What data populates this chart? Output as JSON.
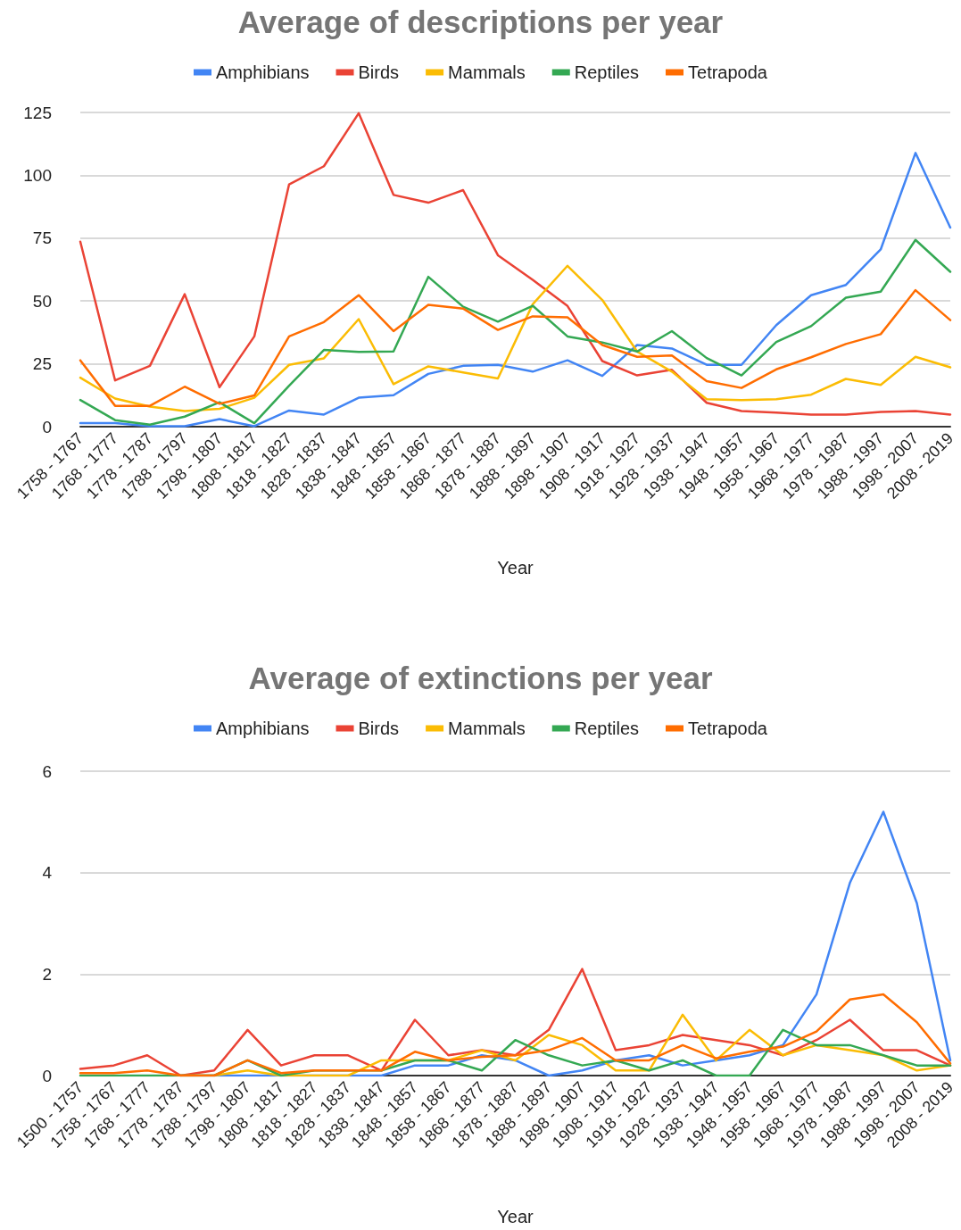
{
  "chart_data": [
    {
      "type": "line",
      "title": "Average of descriptions per year",
      "xlabel": "Year",
      "categories": [
        "1758 - 1767",
        "1768 - 1777",
        "1778 - 1787",
        "1788 - 1797",
        "1798 - 1807",
        "1808 - 1817",
        "1818 - 1827",
        "1828 - 1837",
        "1838 - 1847",
        "1848 - 1857",
        "1858 - 1867",
        "1868 - 1877",
        "1878 - 1887",
        "1888 - 1897",
        "1898 - 1907",
        "1908 - 1917",
        "1918 - 1927",
        "1928 - 1937",
        "1938 - 1947",
        "1948 - 1957",
        "1958 - 1967",
        "1968 - 1977",
        "1978 - 1987",
        "1988 - 1997",
        "1998 - 2007",
        "2008 - 2019"
      ],
      "series": [
        {
          "name": "Amphibians",
          "color": "#4285f4",
          "values": [
            1.4,
            1.4,
            0.2,
            0.2,
            3,
            0.2,
            6.4,
            4.8,
            11.5,
            12.5,
            21,
            24.2,
            24.6,
            21.9,
            26.4,
            20.2,
            32.5,
            31.1,
            24.6,
            24.6,
            40.4,
            52.3,
            56.4,
            70.5,
            108.9,
            79.2
          ]
        },
        {
          "name": "Birds",
          "color": "#ea4335",
          "values": [
            73.6,
            18.4,
            24.2,
            52.7,
            15.7,
            35.9,
            96.4,
            103.6,
            124.7,
            92.2,
            89.1,
            94.1,
            68.2,
            58.4,
            48,
            26.1,
            20.4,
            22.6,
            9.5,
            6.2,
            5.6,
            4.8,
            4.8,
            5.9,
            6.2,
            4.8
          ]
        },
        {
          "name": "Mammals",
          "color": "#fbbc04",
          "values": [
            19.5,
            11.2,
            8,
            6.2,
            7.1,
            11.5,
            24.6,
            27.2,
            42.8,
            16.9,
            24,
            21.6,
            19.2,
            48.7,
            64,
            50.4,
            29.9,
            21.9,
            10.9,
            10.6,
            10.9,
            12.7,
            19,
            16.6,
            27.8,
            23.6
          ]
        },
        {
          "name": "Reptiles",
          "color": "#34a853",
          "values": [
            10.6,
            2.6,
            0.8,
            4,
            9.7,
            1.4,
            16.3,
            30.5,
            29.7,
            29.9,
            59.6,
            47.7,
            41.8,
            48.1,
            35.9,
            33.5,
            29.9,
            38,
            27.3,
            20.4,
            33.7,
            40,
            51.3,
            53.7,
            74.3,
            61.6
          ]
        },
        {
          "name": "Tetrapoda",
          "color": "#ff6d01",
          "values": [
            26.4,
            8.3,
            8.3,
            15.9,
            9.1,
            12.4,
            35.9,
            41.6,
            52.3,
            38,
            48.5,
            47,
            38.5,
            43.9,
            43.5,
            32.5,
            27.8,
            28.3,
            18.1,
            15.4,
            22.8,
            27.6,
            32.9,
            36.8,
            54.3,
            42.4
          ]
        }
      ],
      "ylim": [
        0,
        125
      ],
      "yticks": [
        0,
        25,
        50,
        75,
        100,
        125
      ],
      "grid": "y",
      "legend": "top",
      "marker": "none",
      "line_style": "solid"
    },
    {
      "type": "line",
      "title": "Average of extinctions per year",
      "xlabel": "Year",
      "categories": [
        "1500 - 1757",
        "1758 - 1767",
        "1768 - 1777",
        "1778 - 1787",
        "1788 - 1797",
        "1798 - 1807",
        "1808 - 1817",
        "1818 - 1827",
        "1828 - 1837",
        "1838 - 1847",
        "1848 - 1857",
        "1858 - 1867",
        "1868 - 1877",
        "1878 - 1887",
        "1888 - 1897",
        "1898 - 1907",
        "1908 - 1917",
        "1918 - 1927",
        "1928 - 1937",
        "1938 - 1947",
        "1948 - 1957",
        "1958 - 1967",
        "1968 - 1977",
        "1978 - 1987",
        "1988 - 1997",
        "1998 - 2007",
        "2008 - 2019"
      ],
      "series": [
        {
          "name": "Amphibians",
          "color": "#4285f4",
          "values": [
            null,
            null,
            null,
            0,
            0,
            0,
            0,
            0,
            0,
            0,
            0.2,
            0.2,
            0.4,
            0.3,
            0,
            0.1,
            0.3,
            0.4,
            0.2,
            0.3,
            0.4,
            0.6,
            1.6,
            3.8,
            5.2,
            3.4,
            0.3
          ]
        },
        {
          "name": "Birds",
          "color": "#ea4335",
          "values": [
            0.13,
            0.2,
            0.4,
            0,
            0.1,
            0.9,
            0.2,
            0.4,
            0.4,
            0.1,
            1.1,
            0.4,
            0.5,
            0.4,
            0.9,
            2.1,
            0.5,
            0.6,
            0.8,
            0.7,
            0.6,
            0.4,
            0.7,
            1.1,
            0.5,
            0.5,
            0.2
          ]
        },
        {
          "name": "Mammals",
          "color": "#fbbc04",
          "values": [
            null,
            null,
            null,
            0,
            0,
            0.1,
            0,
            0,
            0,
            0.3,
            0.3,
            0.3,
            0.5,
            0.3,
            0.8,
            0.6,
            0.1,
            0.1,
            1.2,
            0.3,
            0.9,
            0.4,
            0.6,
            0.5,
            0.4,
            0.1,
            0.2
          ]
        },
        {
          "name": "Reptiles",
          "color": "#34a853",
          "values": [
            0,
            0,
            0,
            0,
            0,
            0.3,
            0,
            0.1,
            0.1,
            0.1,
            0.3,
            0.3,
            0.1,
            0.7,
            0.4,
            0.2,
            0.3,
            0.1,
            0.3,
            0,
            0,
            0.9,
            0.6,
            0.6,
            0.4,
            0.2,
            0.2
          ]
        },
        {
          "name": "Tetrapoda",
          "color": "#ff6d01",
          "values": [
            0.05,
            0.05,
            0.1,
            0,
            0,
            0.3,
            0.05,
            0.1,
            0.1,
            0.1,
            0.47,
            0.3,
            0.37,
            0.4,
            0.5,
            0.74,
            0.3,
            0.3,
            0.6,
            0.34,
            0.47,
            0.57,
            0.87,
            1.5,
            1.6,
            1.05,
            0.24
          ]
        }
      ],
      "ylim": [
        0,
        6
      ],
      "yticks": [
        0,
        2,
        4,
        6
      ],
      "grid": "y",
      "legend": "top",
      "marker": "none",
      "line_style": "solid"
    }
  ]
}
